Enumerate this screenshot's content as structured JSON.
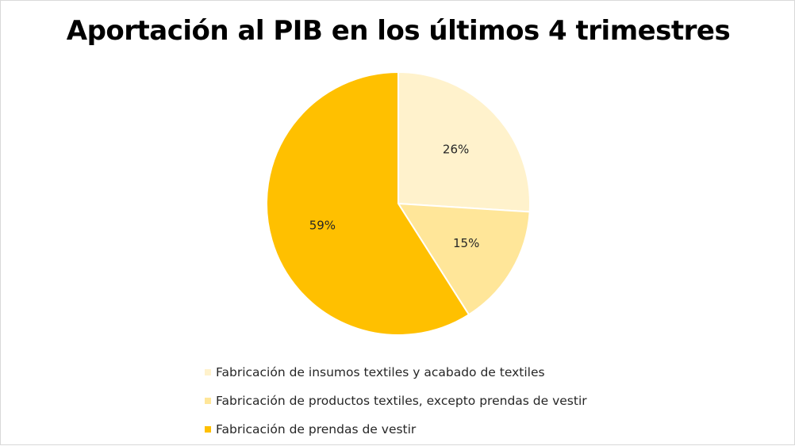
{
  "chart_data": {
    "type": "pie",
    "title": "Aportación al PIB en los últimos 4 trimestres",
    "categories": [
      "Fabricación de insumos textiles y acabado de textiles",
      "Fabricación de productos textiles, excepto prendas de vestir",
      "Fabricación de prendas de vestir"
    ],
    "values": [
      26,
      15,
      59
    ],
    "data_labels": [
      "26%",
      "15%",
      "59%"
    ],
    "colors": [
      "#FFF2CC",
      "#FFE699",
      "#FFC000"
    ],
    "legend_position": "bottom"
  }
}
